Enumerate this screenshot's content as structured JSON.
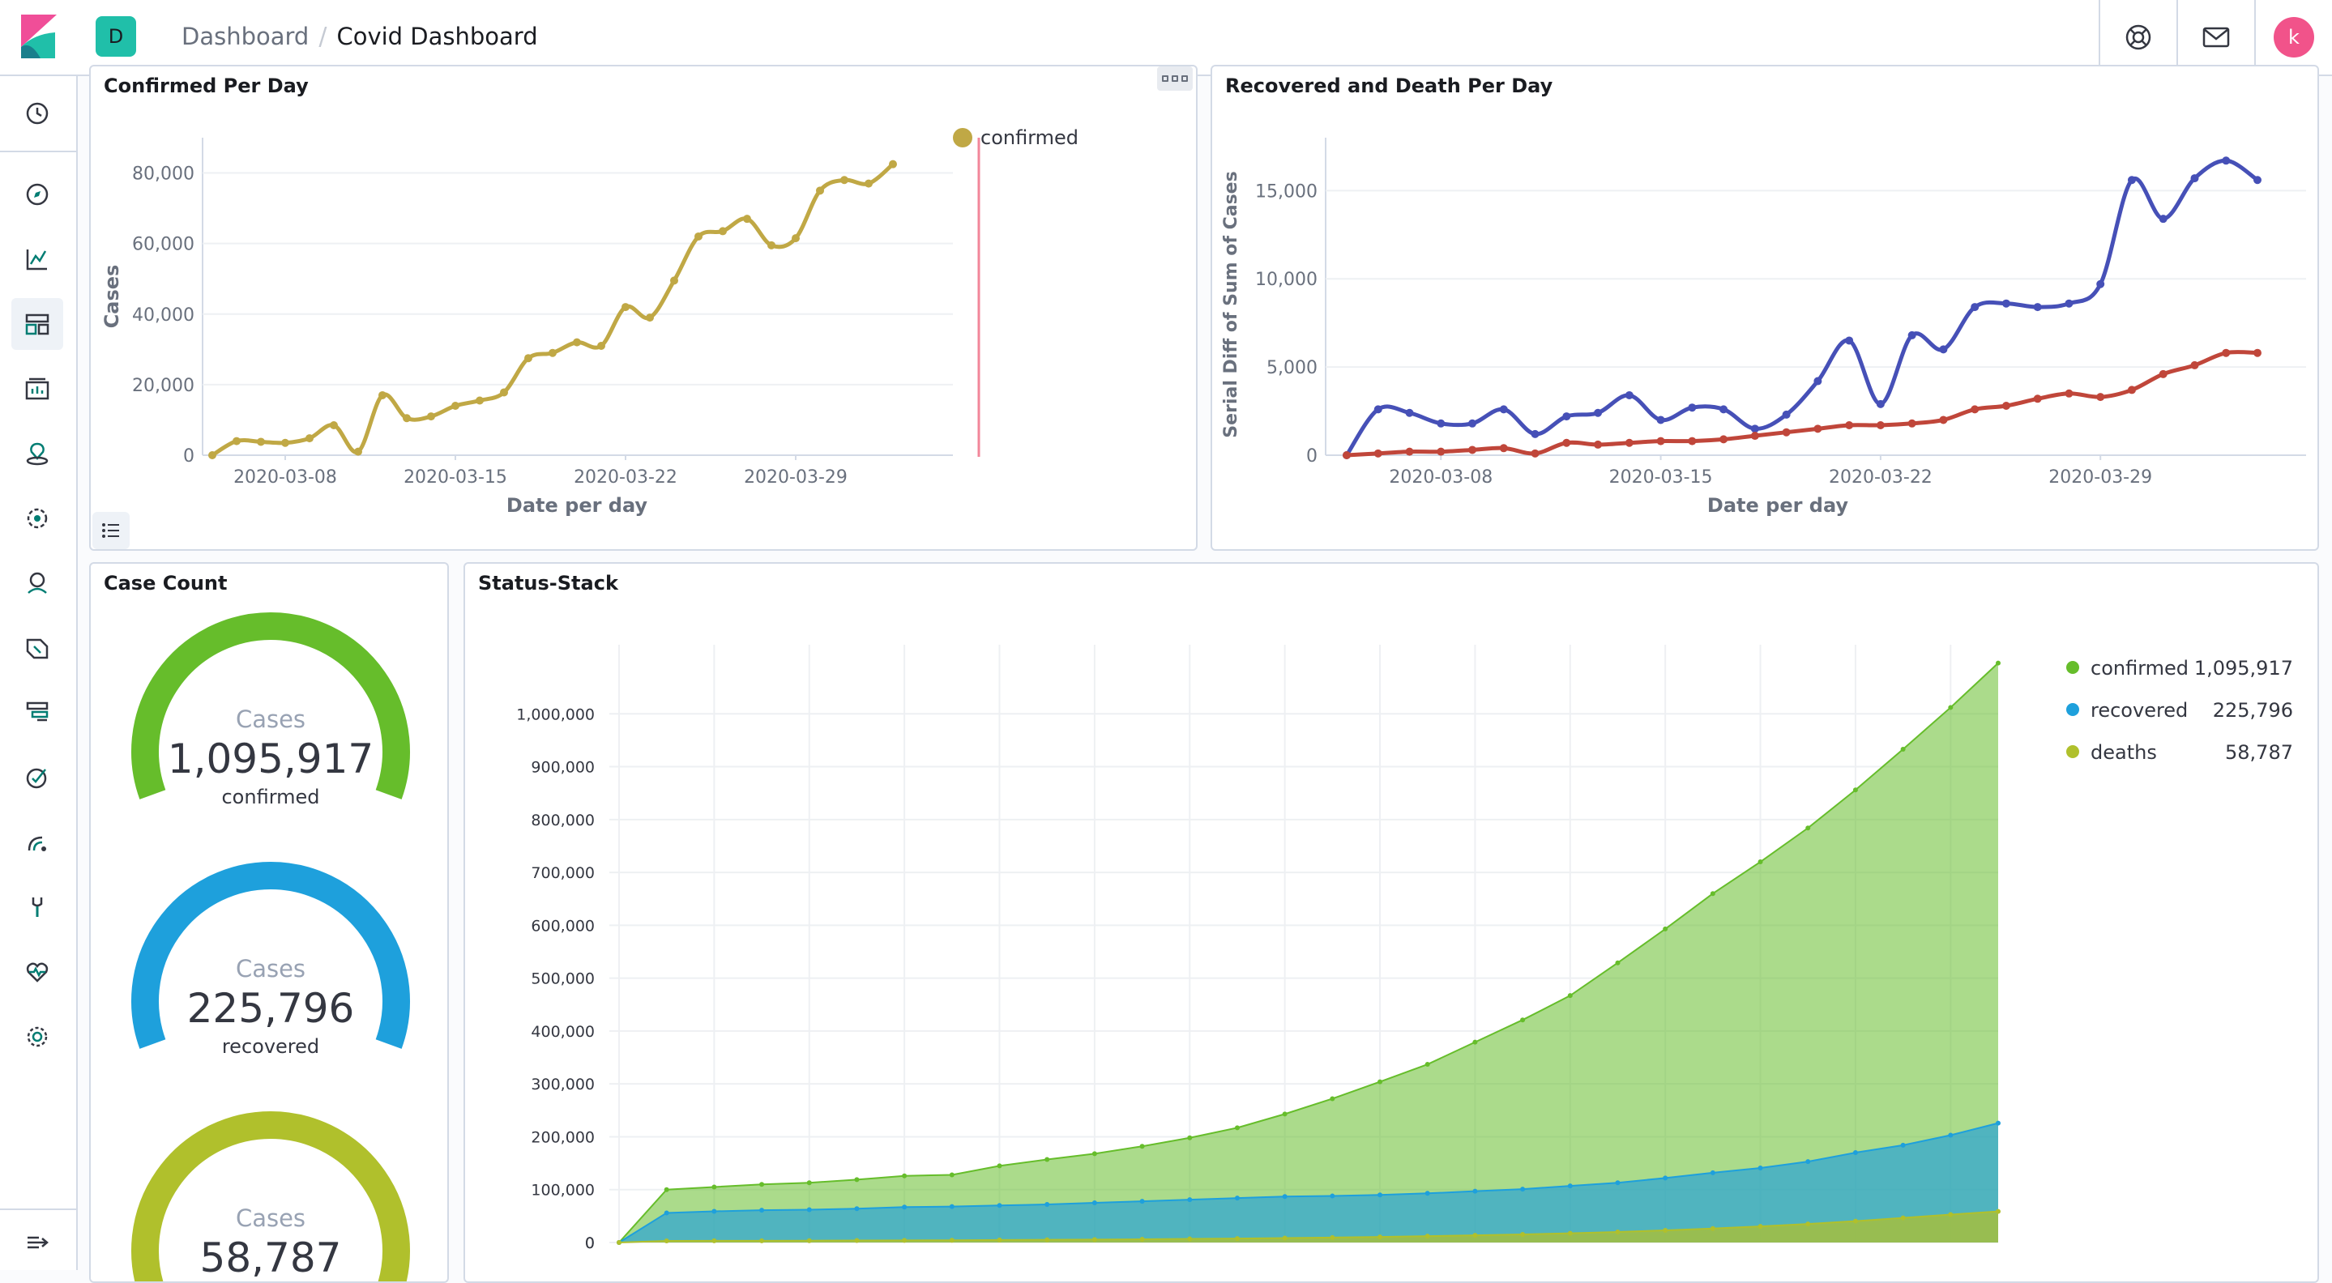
{
  "header": {
    "space_initial": "D",
    "breadcrumbs": [
      "Dashboard",
      "/",
      "Covid Dashboard"
    ],
    "avatar_initial": "k"
  },
  "icons": {
    "logo": "kibana-logo-icon",
    "help": "help-icon",
    "news": "newsfeed-mail-icon",
    "nav": [
      "recently-viewed-clock-icon",
      "discover-compass-icon",
      "visualize-chart-icon",
      "dashboard-icon",
      "canvas-icon",
      "maps-icon",
      "machine-learning-icon",
      "infrastructure-icon",
      "logs-icon",
      "apm-icon",
      "uptime-icon",
      "siem-icon",
      "dev-tools-icon",
      "stack-monitoring-icon",
      "management-gear-icon",
      "dock-navigation-icon"
    ]
  },
  "colors": {
    "accent": "#20bfa9",
    "confirmed_line": "#c0a845",
    "recovered_death_blue": "#4650b7",
    "recovered_death_red": "#c0463a",
    "confirmed_green": "#66bd2b",
    "recovered_blue": "#1ea0dc",
    "deaths_olive": "#b0c02c",
    "threshold": "#f2869a"
  },
  "panels": {
    "confirmed_per_day": {
      "title": "Confirmed Per Day"
    },
    "recovered_death": {
      "title": "Recovered and Death Per Day"
    },
    "case_count": {
      "title": "Case Count",
      "gauges": [
        {
          "label": "Cases",
          "value": "1,095,917",
          "sub": "confirmed",
          "color": "#66bd2b"
        },
        {
          "label": "Cases",
          "value": "225,796",
          "sub": "recovered",
          "color": "#1ea0dc"
        },
        {
          "label": "Cases",
          "value": "58,787",
          "sub": "deaths",
          "color": "#b0c02c"
        }
      ]
    },
    "status_stack": {
      "title": "Status-Stack"
    }
  },
  "chart_data": [
    {
      "type": "line",
      "title": "Confirmed Per Day",
      "xlabel": "Date per day",
      "ylabel": "Cases",
      "x_ticks": [
        "2020-03-08",
        "2020-03-15",
        "2020-03-22",
        "2020-03-29"
      ],
      "y_ticks": [
        "0",
        "20,000",
        "40,000",
        "60,000",
        "80,000"
      ],
      "ylim": [
        0,
        90000
      ],
      "x": [
        "2020-03-05",
        "2020-03-06",
        "2020-03-07",
        "2020-03-08",
        "2020-03-09",
        "2020-03-10",
        "2020-03-11",
        "2020-03-12",
        "2020-03-13",
        "2020-03-14",
        "2020-03-15",
        "2020-03-16",
        "2020-03-17",
        "2020-03-18",
        "2020-03-19",
        "2020-03-20",
        "2020-03-21",
        "2020-03-22",
        "2020-03-23",
        "2020-03-24",
        "2020-03-25",
        "2020-03-26",
        "2020-03-27",
        "2020-03-28",
        "2020-03-29",
        "2020-03-30",
        "2020-03-31",
        "2020-04-01",
        "2020-04-02",
        "2020-04-03",
        "2020-04-04"
      ],
      "series": [
        {
          "name": "confirmed",
          "values": [
            0,
            4000,
            3800,
            3500,
            4800,
            8500,
            1000,
            17000,
            10500,
            11000,
            14000,
            15500,
            17800,
            27500,
            29000,
            32000,
            31000,
            42000,
            39000,
            49500,
            62000,
            63500,
            67000,
            59500,
            61500,
            75000,
            78000,
            77000,
            82500,
            null,
            null
          ]
        }
      ],
      "legend": "top-right",
      "grid": true
    },
    {
      "type": "line",
      "title": "Recovered and Death Per Day",
      "xlabel": "Date per day",
      "ylabel": "Serial Diff of Sum of Cases",
      "x_ticks": [
        "2020-03-08",
        "2020-03-15",
        "2020-03-22",
        "2020-03-29"
      ],
      "y_ticks": [
        "0",
        "5,000",
        "10,000",
        "15,000"
      ],
      "ylim": [
        0,
        18000
      ],
      "x": [
        "2020-03-05",
        "2020-03-06",
        "2020-03-07",
        "2020-03-08",
        "2020-03-09",
        "2020-03-10",
        "2020-03-11",
        "2020-03-12",
        "2020-03-13",
        "2020-03-14",
        "2020-03-15",
        "2020-03-16",
        "2020-03-17",
        "2020-03-18",
        "2020-03-19",
        "2020-03-20",
        "2020-03-21",
        "2020-03-22",
        "2020-03-23",
        "2020-03-24",
        "2020-03-25",
        "2020-03-26",
        "2020-03-27",
        "2020-03-28",
        "2020-03-29",
        "2020-03-30",
        "2020-03-31",
        "2020-04-01",
        "2020-04-02",
        "2020-04-03"
      ],
      "series": [
        {
          "values": [
            0,
            2600,
            2400,
            1800,
            1800,
            2600,
            1200,
            2200,
            2400,
            3400,
            2000,
            2700,
            2600,
            1500,
            2300,
            4200,
            6500,
            2900,
            6800,
            6000,
            8400,
            8600,
            8400,
            8600,
            9700,
            15600,
            13400,
            15700,
            16700,
            15600
          ]
        },
        {
          "values": [
            0,
            100,
            200,
            200,
            300,
            400,
            100,
            700,
            600,
            700,
            800,
            800,
            900,
            1100,
            1300,
            1500,
            1700,
            1700,
            1800,
            2000,
            2600,
            2800,
            3200,
            3500,
            3300,
            3700,
            4600,
            5100,
            5800,
            5800
          ]
        }
      ],
      "grid": true
    },
    {
      "type": "area",
      "title": "Status-Stack",
      "y_ticks": [
        "0",
        "100,000",
        "200,000",
        "300,000",
        "400,000",
        "500,000",
        "600,000",
        "700,000",
        "800,000",
        "900,000",
        "1,000,000"
      ],
      "ylim": [
        0,
        1100000
      ],
      "series": [
        {
          "name": "confirmed",
          "total": "1,095,917",
          "values": [
            0,
            100000,
            105000,
            110000,
            113000,
            119000,
            126000,
            128000,
            145000,
            157000,
            168000,
            182000,
            198000,
            217000,
            243000,
            272000,
            304000,
            337000,
            379000,
            421000,
            467000,
            529000,
            593000,
            660000,
            720000,
            784000,
            856000,
            933000,
            1012000,
            1095917
          ]
        },
        {
          "name": "recovered",
          "total": "225,796",
          "values": [
            0,
            56000,
            59000,
            61000,
            62000,
            64000,
            67000,
            68000,
            70000,
            72000,
            75000,
            78000,
            81000,
            84000,
            87000,
            88000,
            90000,
            93000,
            97000,
            101000,
            107000,
            113000,
            122000,
            132000,
            141000,
            153000,
            170000,
            184000,
            203000,
            225796
          ]
        },
        {
          "name": "deaths",
          "total": "58,787",
          "values": [
            0,
            3000,
            3200,
            3300,
            3500,
            3800,
            4000,
            4300,
            4700,
            5100,
            5500,
            6100,
            6800,
            7500,
            8400,
            9400,
            10600,
            12000,
            13600,
            15400,
            17500,
            20000,
            23000,
            26500,
            30500,
            35000,
            40500,
            46500,
            52800,
            58787
          ]
        }
      ],
      "legend": "top-right",
      "grid": true
    }
  ]
}
